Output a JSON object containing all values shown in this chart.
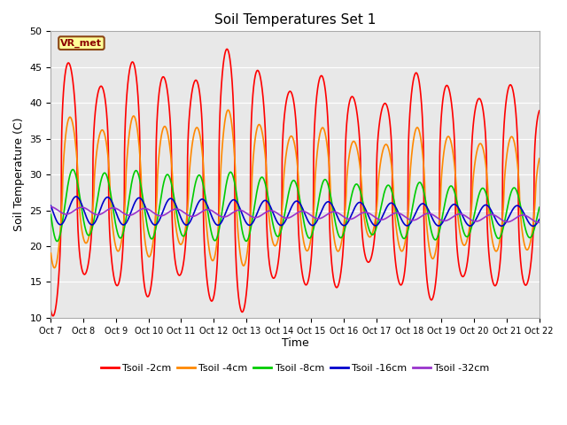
{
  "title": "Soil Temperatures Set 1",
  "xlabel": "Time",
  "ylabel": "Soil Temperature (C)",
  "ylim": [
    10,
    50
  ],
  "yticks": [
    10,
    15,
    20,
    25,
    30,
    35,
    40,
    45,
    50
  ],
  "background_color": "#e8e8e8",
  "annotation_text": "VR_met",
  "annotation_bbox": {
    "facecolor": "#ffff99",
    "edgecolor": "#8B4513",
    "boxstyle": "round,pad=0.2"
  },
  "series_names": [
    "Tsoil -2cm",
    "Tsoil -4cm",
    "Tsoil -8cm",
    "Tsoil -16cm",
    "Tsoil -32cm"
  ],
  "series_colors": [
    "#ff0000",
    "#ff8800",
    "#00cc00",
    "#0000cc",
    "#9933cc"
  ],
  "series_lw": [
    1.2,
    1.2,
    1.2,
    1.2,
    1.2
  ],
  "xtick_labels": [
    "Oct 7",
    "Oct 8",
    "Oct 9",
    "Oct 10",
    "Oct 11",
    "Oct 12",
    "Oct 13",
    "Oct 14",
    "Oct 15",
    "Oct 16",
    "Oct 17",
    "Oct 18",
    "Oct 19",
    "Oct 20",
    "Oct 21",
    "Oct 22"
  ],
  "n_days": 15.5,
  "samples_per_day": 288,
  "figsize": [
    6.4,
    4.8
  ],
  "dpi": 100
}
